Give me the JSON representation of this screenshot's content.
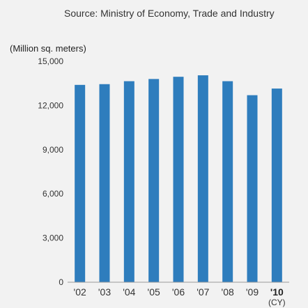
{
  "source_note": "Source: Ministry of Economy, Trade and Industry",
  "chart_data": {
    "type": "bar",
    "title": "",
    "ylabel": "(Million sq. meters)",
    "xlabel": "",
    "x_unit": "(CY)",
    "categories": [
      "'02",
      "'03",
      "'04",
      "'05",
      "'06",
      "'07",
      "'08",
      "'09",
      "'10"
    ],
    "highlight_category": "'10",
    "values": [
      13400,
      13450,
      13650,
      13800,
      13950,
      14050,
      13650,
      12700,
      13150
    ],
    "ylim": [
      0,
      15000
    ],
    "yticks": [
      0,
      3000,
      6000,
      9000,
      12000,
      15000
    ],
    "ytick_labels": [
      "0",
      "3,000",
      "6,000",
      "9,000",
      "12,000",
      "15,000"
    ],
    "grid": false,
    "legend": "none",
    "bar_color": "#2e7dbd",
    "axis_color": "#9a9a9a",
    "background_color": "#f2f2f2"
  }
}
